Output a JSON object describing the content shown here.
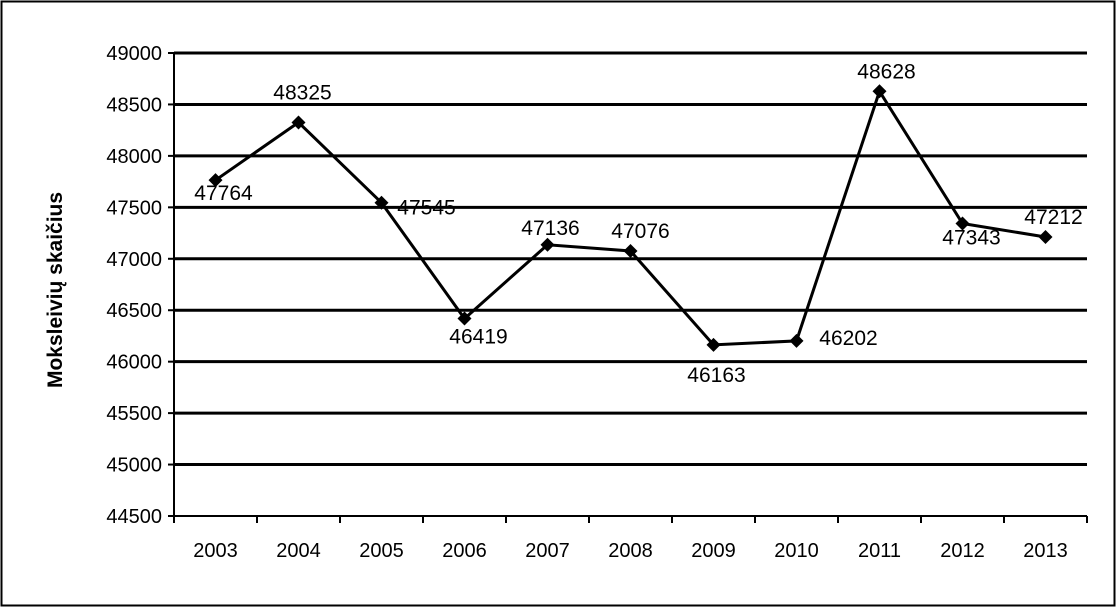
{
  "chart_data": {
    "type": "line",
    "title": "",
    "xlabel": "",
    "ylabel": "Moksleivių skaičius",
    "categories": [
      "2003",
      "2004",
      "2005",
      "2006",
      "2007",
      "2008",
      "2009",
      "2010",
      "2011",
      "2012",
      "2013"
    ],
    "series": [
      {
        "values": [
          47764,
          48325,
          47545,
          46419,
          47136,
          47076,
          46163,
          46202,
          48628,
          47343,
          47212
        ]
      }
    ],
    "data_labels": [
      "47764",
      "48325",
      "47545",
      "46419",
      "47136",
      "47076",
      "46163",
      "46202",
      "48628",
      "47343",
      "47212"
    ],
    "ylim": [
      44500,
      49000
    ],
    "y_ticks": [
      "44500",
      "45000",
      "45500",
      "46000",
      "46500",
      "47000",
      "47500",
      "48000",
      "48500",
      "49000"
    ],
    "grid": true,
    "legend": "none",
    "colors": {
      "line": "#000000",
      "grid": "#000000",
      "background": "#ffffff"
    }
  }
}
